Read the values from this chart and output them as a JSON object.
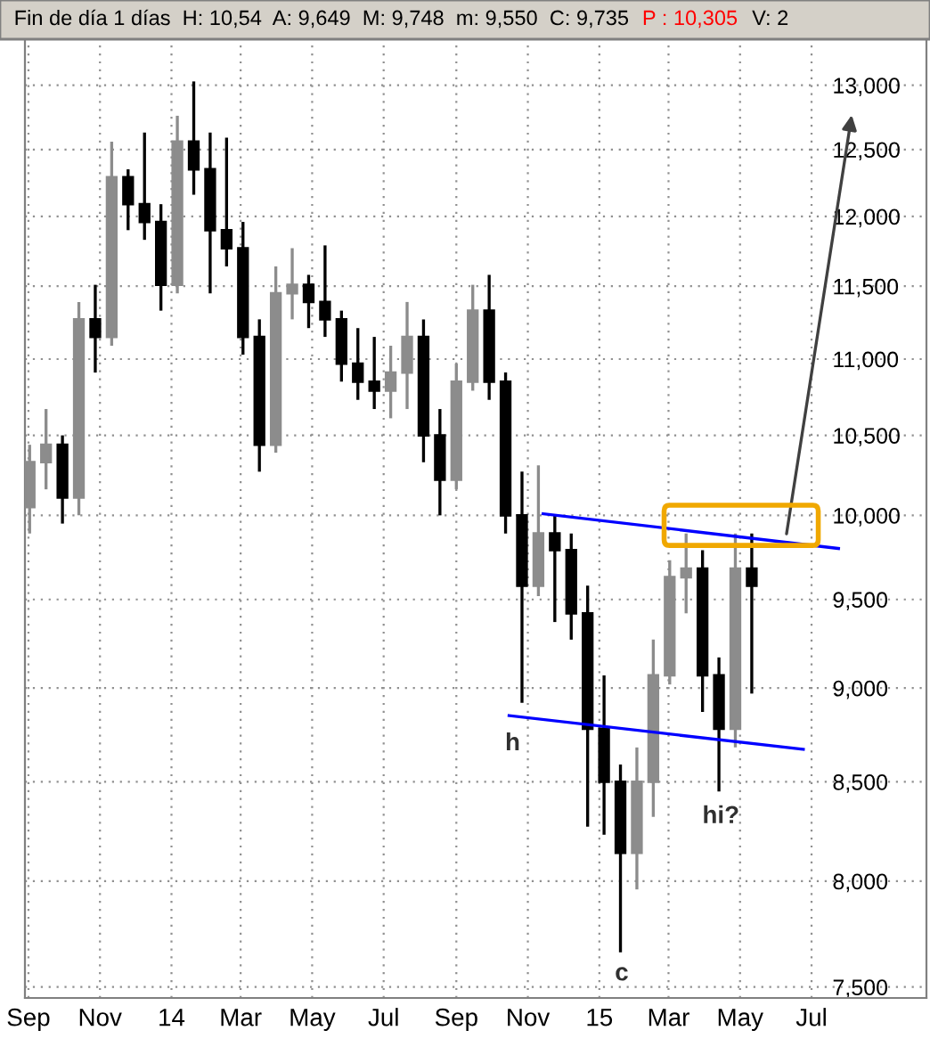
{
  "chart_data": {
    "type": "candlestick",
    "title": "Fin de día 1 días  H: 10,54  A: 9,649  M: 9,748  m: 9,550  C: 9,735",
    "subtitle": "P : 10,305",
    "series": [
      {
        "color": "#8c8c8c",
        "x": [
          "2013-09-02",
          "2013-09-16",
          "2013-10-14",
          "2013-11-11",
          "2014-01-06",
          "2014-03-31",
          "2014-04-14",
          "2014-07-07",
          "2014-07-21",
          "2014-09-01",
          "2014-09-15",
          "2014-11-10",
          "2015-02-02",
          "2015-02-16",
          "2015-03-02",
          "2015-03-16",
          "2015-04-27"
        ],
        "ohlc": [
          [
            10050,
            10440,
            9890,
            10330
          ],
          [
            10330,
            10670,
            10160,
            10440
          ],
          [
            10110,
            11390,
            10000,
            11270
          ],
          [
            11150,
            12560,
            11090,
            12290
          ],
          [
            11510,
            12760,
            11450,
            12560
          ],
          [
            10440,
            11640,
            10390,
            11450
          ],
          [
            11450,
            11770,
            11270,
            11510
          ],
          [
            10790,
            11090,
            10610,
            10910
          ],
          [
            10910,
            11390,
            10670,
            11150
          ],
          [
            10220,
            10970,
            10160,
            10850
          ],
          [
            10850,
            11510,
            10790,
            11330
          ],
          [
            9580,
            10310,
            9520,
            9890
          ],
          [
            8140,
            8680,
            7960,
            8500
          ],
          [
            8500,
            9270,
            8320,
            9070
          ],
          [
            9070,
            9730,
            9020,
            9630
          ],
          [
            9630,
            9890,
            9420,
            9680
          ],
          [
            8780,
            9890,
            8680,
            9680
          ]
        ]
      },
      {
        "color": "#000000",
        "x": [
          "2013-09-30",
          "2013-10-28",
          "2013-11-25",
          "2013-12-09",
          "2013-12-23",
          "2014-01-20",
          "2014-02-03",
          "2014-02-17",
          "2014-03-03",
          "2014-03-17",
          "2014-04-28",
          "2014-05-12",
          "2014-05-26",
          "2014-06-09",
          "2014-06-23",
          "2014-08-04",
          "2014-08-18",
          "2014-09-29",
          "2014-10-13",
          "2014-10-27",
          "2014-11-24",
          "2014-12-08",
          "2014-12-22",
          "2015-01-05",
          "2015-01-19",
          "2015-03-30",
          "2015-04-13",
          "2015-05-11"
        ],
        "ohlc": [
          [
            10440,
            10500,
            9950,
            10110
          ],
          [
            11270,
            11510,
            10910,
            11150
          ],
          [
            12290,
            12350,
            11900,
            12090
          ],
          [
            12090,
            12630,
            11830,
            11960
          ],
          [
            11960,
            12090,
            11330,
            11510
          ],
          [
            12560,
            13030,
            12160,
            12350
          ],
          [
            12350,
            12630,
            11450,
            11900
          ],
          [
            11900,
            12590,
            11640,
            11770
          ],
          [
            11770,
            11960,
            11030,
            11150
          ],
          [
            11150,
            11270,
            10270,
            10440
          ],
          [
            11510,
            11580,
            11210,
            11390
          ],
          [
            11390,
            11790,
            11150,
            11270
          ],
          [
            11270,
            11330,
            10850,
            10970
          ],
          [
            10970,
            11210,
            10730,
            10850
          ],
          [
            10850,
            11150,
            10670,
            10790
          ],
          [
            11150,
            11270,
            10330,
            10500
          ],
          [
            10500,
            10670,
            10000,
            10220
          ],
          [
            11330,
            11580,
            10730,
            10850
          ],
          [
            10850,
            10910,
            9890,
            10000
          ],
          [
            10000,
            10270,
            8920,
            9580
          ],
          [
            9890,
            10000,
            9370,
            9790
          ],
          [
            9790,
            9890,
            9270,
            9420
          ],
          [
            9420,
            9580,
            8270,
            8780
          ],
          [
            8780,
            9070,
            8230,
            8500
          ],
          [
            8500,
            8590,
            7660,
            8140
          ],
          [
            9680,
            9790,
            8870,
            9070
          ],
          [
            9070,
            9170,
            8450,
            8780
          ],
          [
            9680,
            9890,
            8970,
            9580
          ]
        ]
      },
      {
        "type": "line",
        "color": "#0000ff",
        "x": [
          "2014-11-14",
          "2015-07-24"
        ],
        "values": [
          10010,
          9800
        ]
      },
      {
        "type": "line",
        "color": "#0000ff",
        "x": [
          "2014-10-16",
          "2015-06-24"
        ],
        "values": [
          8850,
          8670
        ]
      }
    ],
    "annotations": [
      "h",
      "c",
      "hi?",
      "V: 2"
    ],
    "log": true,
    "xlim": [
      "2013-08-29",
      "2015-10-07"
    ],
    "ylim": [
      7450,
      13370
    ],
    "xticks": [
      {
        "value": "2013-09-01",
        "label": "Sep"
      },
      {
        "value": "2013-11-01",
        "label": "Nov"
      },
      {
        "value": "2014-01-01",
        "label": "14"
      },
      {
        "value": "2014-03-01",
        "label": "Mar"
      },
      {
        "value": "2014-05-01",
        "label": "May"
      },
      {
        "value": "2014-07-01",
        "label": "Jul"
      },
      {
        "value": "2014-09-01",
        "label": "Sep"
      },
      {
        "value": "2014-11-01",
        "label": "Nov"
      },
      {
        "value": "2015-01-01",
        "label": "15"
      },
      {
        "value": "2015-03-01",
        "label": "Mar"
      },
      {
        "value": "2015-05-01",
        "label": "May"
      },
      {
        "value": "2015-07-01",
        "label": "Jul"
      }
    ],
    "yticks": [
      {
        "value": 7500,
        "label": "7,500"
      },
      {
        "value": 8000,
        "label": "8,000"
      },
      {
        "value": 8500,
        "label": "8,500"
      },
      {
        "value": 9000,
        "label": "9,000"
      },
      {
        "value": 9500,
        "label": "9,500"
      },
      {
        "value": 10000,
        "label": "10,000"
      },
      {
        "value": 10500,
        "label": "10,500"
      },
      {
        "value": 11000,
        "label": "11,000"
      },
      {
        "value": 11500,
        "label": "11,500"
      },
      {
        "value": 12000,
        "label": "12,000"
      },
      {
        "value": 12500,
        "label": "12,500"
      },
      {
        "value": 13000,
        "label": "13,000"
      }
    ],
    "grid": true,
    "marker": "none",
    "line_style": "solid"
  }
}
